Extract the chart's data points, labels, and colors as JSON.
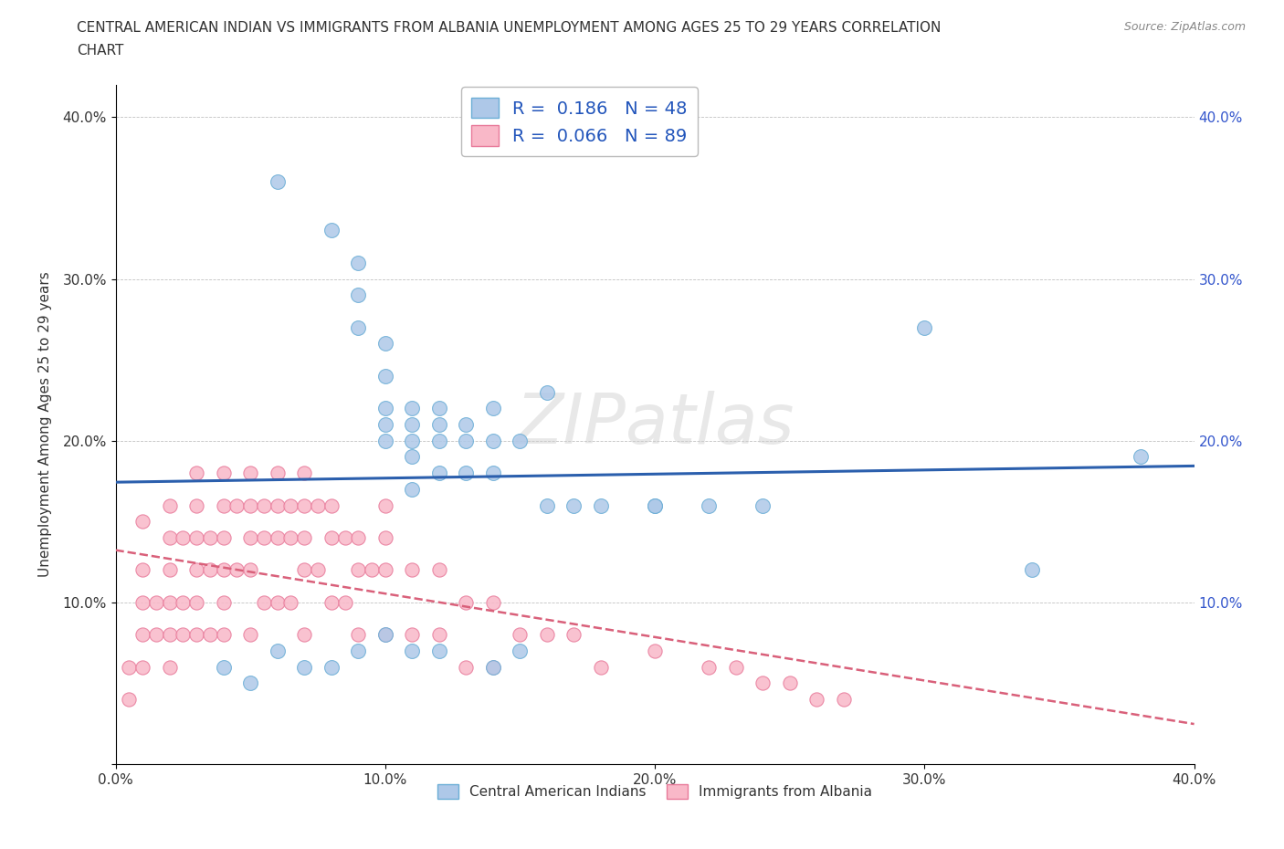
{
  "title_line1": "CENTRAL AMERICAN INDIAN VS IMMIGRANTS FROM ALBANIA UNEMPLOYMENT AMONG AGES 25 TO 29 YEARS CORRELATION",
  "title_line2": "CHART",
  "source_text": "Source: ZipAtlas.com",
  "ylabel": "Unemployment Among Ages 25 to 29 years",
  "xlim": [
    0.0,
    0.4
  ],
  "ylim": [
    0.0,
    0.42
  ],
  "x_ticks": [
    0.0,
    0.1,
    0.2,
    0.3,
    0.4
  ],
  "x_tick_labels": [
    "0.0%",
    "10.0%",
    "20.0%",
    "30.0%",
    "40.0%"
  ],
  "y_ticks": [
    0.0,
    0.1,
    0.2,
    0.3,
    0.4
  ],
  "y_tick_labels": [
    "",
    "10.0%",
    "20.0%",
    "30.0%",
    "40.0%"
  ],
  "blue_face": "#aec8e8",
  "blue_edge": "#6baed6",
  "pink_face": "#f9b8c8",
  "pink_edge": "#e87a9a",
  "trendline_blue": "#2b5fad",
  "trendline_pink": "#d9607a",
  "R_blue": 0.186,
  "N_blue": 48,
  "R_pink": 0.066,
  "N_pink": 89,
  "legend_label_blue": "Central American Indians",
  "legend_label_pink": "Immigrants from Albania",
  "watermark": "ZIPatlas",
  "blue_x": [
    0.06,
    0.08,
    0.09,
    0.09,
    0.09,
    0.1,
    0.1,
    0.1,
    0.1,
    0.1,
    0.11,
    0.11,
    0.11,
    0.11,
    0.11,
    0.12,
    0.12,
    0.12,
    0.12,
    0.13,
    0.13,
    0.13,
    0.14,
    0.14,
    0.14,
    0.15,
    0.16,
    0.17,
    0.18,
    0.2,
    0.22,
    0.24,
    0.38,
    0.04,
    0.05,
    0.06,
    0.07,
    0.08,
    0.09,
    0.1,
    0.11,
    0.12,
    0.14,
    0.15,
    0.16,
    0.2,
    0.3,
    0.34
  ],
  "blue_y": [
    0.36,
    0.33,
    0.31,
    0.29,
    0.27,
    0.26,
    0.24,
    0.22,
    0.21,
    0.2,
    0.22,
    0.21,
    0.2,
    0.19,
    0.17,
    0.22,
    0.21,
    0.2,
    0.18,
    0.21,
    0.2,
    0.18,
    0.22,
    0.2,
    0.18,
    0.2,
    0.23,
    0.16,
    0.16,
    0.16,
    0.16,
    0.16,
    0.19,
    0.06,
    0.05,
    0.07,
    0.06,
    0.06,
    0.07,
    0.08,
    0.07,
    0.07,
    0.06,
    0.07,
    0.16,
    0.16,
    0.27,
    0.12
  ],
  "pink_x": [
    0.005,
    0.005,
    0.01,
    0.01,
    0.01,
    0.01,
    0.01,
    0.015,
    0.015,
    0.02,
    0.02,
    0.02,
    0.02,
    0.02,
    0.02,
    0.025,
    0.025,
    0.025,
    0.03,
    0.03,
    0.03,
    0.03,
    0.03,
    0.03,
    0.035,
    0.035,
    0.035,
    0.04,
    0.04,
    0.04,
    0.04,
    0.04,
    0.04,
    0.045,
    0.045,
    0.05,
    0.05,
    0.05,
    0.05,
    0.05,
    0.055,
    0.055,
    0.055,
    0.06,
    0.06,
    0.06,
    0.06,
    0.065,
    0.065,
    0.065,
    0.07,
    0.07,
    0.07,
    0.07,
    0.07,
    0.075,
    0.075,
    0.08,
    0.08,
    0.08,
    0.085,
    0.085,
    0.09,
    0.09,
    0.09,
    0.095,
    0.1,
    0.1,
    0.1,
    0.1,
    0.11,
    0.11,
    0.12,
    0.12,
    0.13,
    0.13,
    0.14,
    0.14,
    0.15,
    0.16,
    0.17,
    0.18,
    0.2,
    0.22,
    0.23,
    0.24,
    0.25,
    0.26,
    0.27
  ],
  "pink_y": [
    0.06,
    0.04,
    0.15,
    0.12,
    0.1,
    0.08,
    0.06,
    0.1,
    0.08,
    0.16,
    0.14,
    0.12,
    0.1,
    0.08,
    0.06,
    0.14,
    0.1,
    0.08,
    0.18,
    0.16,
    0.14,
    0.12,
    0.1,
    0.08,
    0.14,
    0.12,
    0.08,
    0.18,
    0.16,
    0.14,
    0.12,
    0.1,
    0.08,
    0.16,
    0.12,
    0.18,
    0.16,
    0.14,
    0.12,
    0.08,
    0.16,
    0.14,
    0.1,
    0.18,
    0.16,
    0.14,
    0.1,
    0.16,
    0.14,
    0.1,
    0.18,
    0.16,
    0.14,
    0.12,
    0.08,
    0.16,
    0.12,
    0.16,
    0.14,
    0.1,
    0.14,
    0.1,
    0.14,
    0.12,
    0.08,
    0.12,
    0.16,
    0.14,
    0.12,
    0.08,
    0.12,
    0.08,
    0.12,
    0.08,
    0.1,
    0.06,
    0.1,
    0.06,
    0.08,
    0.08,
    0.08,
    0.06,
    0.07,
    0.06,
    0.06,
    0.05,
    0.05,
    0.04,
    0.04
  ]
}
